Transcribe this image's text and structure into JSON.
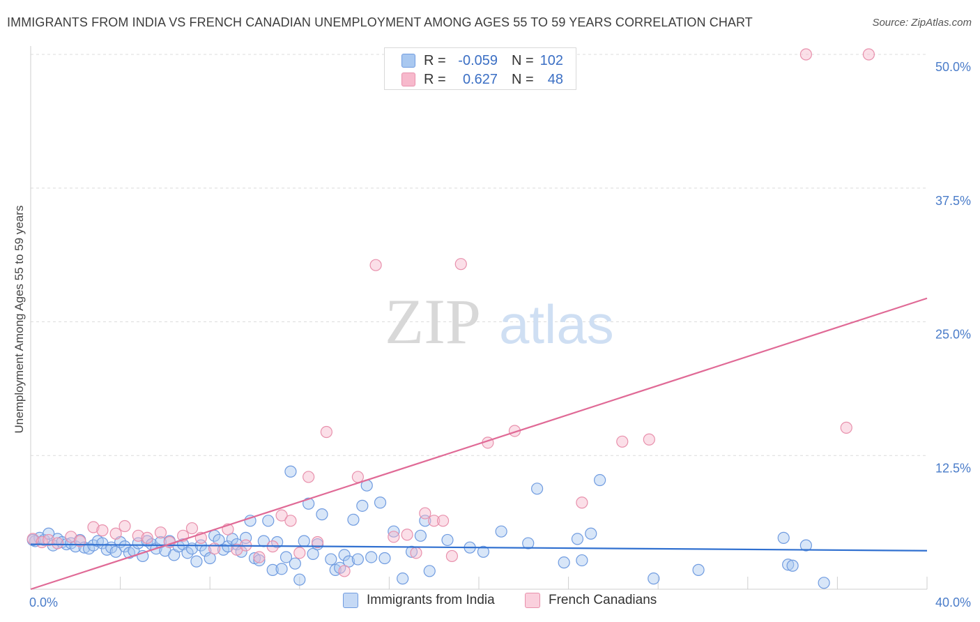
{
  "title": "IMMIGRANTS FROM INDIA VS FRENCH CANADIAN UNEMPLOYMENT AMONG AGES 55 TO 59 YEARS CORRELATION CHART",
  "source": "Source: ZipAtlas.com",
  "watermark": {
    "zip": "ZIP",
    "atlas": "atlas"
  },
  "legend": {
    "rows": [
      {
        "r_label": "R =",
        "r_value": "-0.059",
        "n_label": "N =",
        "n_value": "102",
        "color": "#a9c8f0",
        "border": "#6f9be0"
      },
      {
        "r_label": "R =",
        "r_value": "0.627",
        "n_label": "N =",
        "n_value": "48",
        "color": "#f7b9cc",
        "border": "#e890ac"
      }
    ]
  },
  "bottom_legend": [
    "Immigrants from India",
    "French Canadians"
  ],
  "chart_data": {
    "type": "scatter",
    "title": "IMMIGRANTS FROM INDIA VS FRENCH CANADIAN UNEMPLOYMENT AMONG AGES 55 TO 59 YEARS CORRELATION CHART",
    "xlabel": "",
    "ylabel": "Unemployment Among Ages 55 to 59 years",
    "xlim": [
      0,
      40
    ],
    "ylim": [
      0,
      50
    ],
    "x_tick_labels": [
      "0.0%",
      "40.0%"
    ],
    "y_ticks": [
      12.5,
      25.0,
      37.5,
      50.0
    ],
    "y_tick_labels": [
      "12.5%",
      "25.0%",
      "37.5%",
      "50.0%"
    ],
    "grid": true,
    "series": [
      {
        "name": "Immigrants from India",
        "color": "#6f9be0",
        "fill": "#a9c8f0",
        "trend": {
          "x": [
            0,
            40
          ],
          "y": [
            4.2,
            3.6
          ],
          "color": "#3070d0"
        },
        "points": [
          [
            0.2,
            4.5
          ],
          [
            0.4,
            4.8
          ],
          [
            0.6,
            4.6
          ],
          [
            0.8,
            5.2
          ],
          [
            1.0,
            4.1
          ],
          [
            1.2,
            4.7
          ],
          [
            1.4,
            4.4
          ],
          [
            1.6,
            4.2
          ],
          [
            1.8,
            4.3
          ],
          [
            2.0,
            4.0
          ],
          [
            2.2,
            4.6
          ],
          [
            2.4,
            3.9
          ],
          [
            2.6,
            3.8
          ],
          [
            2.8,
            4.1
          ],
          [
            3.0,
            4.5
          ],
          [
            3.2,
            4.3
          ],
          [
            3.4,
            3.7
          ],
          [
            3.6,
            3.9
          ],
          [
            3.8,
            3.5
          ],
          [
            4.0,
            4.4
          ],
          [
            4.2,
            4.0
          ],
          [
            4.4,
            3.4
          ],
          [
            4.6,
            3.6
          ],
          [
            4.8,
            4.3
          ],
          [
            5.0,
            3.1
          ],
          [
            5.2,
            4.5
          ],
          [
            5.4,
            4.2
          ],
          [
            5.6,
            3.8
          ],
          [
            5.8,
            4.4
          ],
          [
            6.0,
            3.6
          ],
          [
            6.2,
            4.5
          ],
          [
            6.4,
            3.2
          ],
          [
            6.6,
            4.0
          ],
          [
            6.8,
            4.2
          ],
          [
            7.0,
            3.4
          ],
          [
            7.2,
            3.8
          ],
          [
            7.4,
            2.6
          ],
          [
            7.6,
            4.1
          ],
          [
            7.8,
            3.6
          ],
          [
            8.0,
            2.9
          ],
          [
            8.2,
            5.0
          ],
          [
            8.4,
            4.6
          ],
          [
            8.6,
            3.7
          ],
          [
            8.8,
            4.0
          ],
          [
            9.0,
            4.7
          ],
          [
            9.2,
            4.2
          ],
          [
            9.4,
            3.5
          ],
          [
            9.6,
            4.8
          ],
          [
            9.8,
            6.4
          ],
          [
            10.0,
            2.9
          ],
          [
            10.2,
            2.7
          ],
          [
            10.4,
            4.5
          ],
          [
            10.6,
            6.4
          ],
          [
            10.8,
            1.8
          ],
          [
            11.0,
            4.4
          ],
          [
            11.2,
            1.9
          ],
          [
            11.4,
            3.0
          ],
          [
            11.6,
            11.0
          ],
          [
            11.8,
            2.4
          ],
          [
            12.0,
            0.9
          ],
          [
            12.2,
            4.5
          ],
          [
            12.4,
            8.0
          ],
          [
            12.6,
            3.3
          ],
          [
            12.8,
            4.2
          ],
          [
            13.0,
            7.0
          ],
          [
            13.4,
            2.8
          ],
          [
            13.6,
            1.8
          ],
          [
            13.8,
            2.0
          ],
          [
            14.0,
            3.2
          ],
          [
            14.2,
            2.6
          ],
          [
            14.4,
            6.5
          ],
          [
            14.6,
            2.8
          ],
          [
            14.8,
            7.8
          ],
          [
            15.0,
            9.7
          ],
          [
            15.2,
            3.0
          ],
          [
            15.6,
            8.1
          ],
          [
            15.8,
            2.9
          ],
          [
            16.2,
            5.4
          ],
          [
            16.6,
            1.0
          ],
          [
            17.0,
            3.5
          ],
          [
            17.4,
            5.0
          ],
          [
            17.6,
            6.4
          ],
          [
            17.8,
            1.7
          ],
          [
            18.6,
            4.6
          ],
          [
            19.6,
            3.9
          ],
          [
            20.2,
            3.5
          ],
          [
            21.0,
            5.4
          ],
          [
            22.2,
            4.3
          ],
          [
            22.6,
            9.4
          ],
          [
            23.8,
            2.5
          ],
          [
            24.4,
            4.7
          ],
          [
            24.6,
            2.7
          ],
          [
            25.0,
            5.2
          ],
          [
            25.4,
            10.2
          ],
          [
            27.8,
            1.0
          ],
          [
            29.8,
            1.8
          ],
          [
            33.6,
            4.8
          ],
          [
            33.8,
            2.3
          ],
          [
            34.0,
            2.2
          ],
          [
            34.6,
            4.1
          ],
          [
            35.4,
            0.6
          ],
          [
            0.1,
            4.6
          ]
        ]
      },
      {
        "name": "French Canadians",
        "color": "#e890ac",
        "fill": "#f7b9cc",
        "trend": {
          "x": [
            0,
            40
          ],
          "y": [
            0,
            27.2
          ],
          "color": "#e06a96"
        },
        "points": [
          [
            0.1,
            4.7
          ],
          [
            0.5,
            4.4
          ],
          [
            0.8,
            4.6
          ],
          [
            1.2,
            4.3
          ],
          [
            1.8,
            4.9
          ],
          [
            2.2,
            4.5
          ],
          [
            2.8,
            5.8
          ],
          [
            3.2,
            5.5
          ],
          [
            3.8,
            5.2
          ],
          [
            4.2,
            5.9
          ],
          [
            4.8,
            5.0
          ],
          [
            5.2,
            4.8
          ],
          [
            5.8,
            5.3
          ],
          [
            6.2,
            4.4
          ],
          [
            6.8,
            5.0
          ],
          [
            7.2,
            5.7
          ],
          [
            7.6,
            4.8
          ],
          [
            8.2,
            3.8
          ],
          [
            8.8,
            5.6
          ],
          [
            9.2,
            3.7
          ],
          [
            9.6,
            4.1
          ],
          [
            10.2,
            3.0
          ],
          [
            10.8,
            4.0
          ],
          [
            11.2,
            6.9
          ],
          [
            11.6,
            6.4
          ],
          [
            12.0,
            3.4
          ],
          [
            12.4,
            10.5
          ],
          [
            12.8,
            4.4
          ],
          [
            13.2,
            14.7
          ],
          [
            14.0,
            1.7
          ],
          [
            14.6,
            10.5
          ],
          [
            15.4,
            30.3
          ],
          [
            16.2,
            4.9
          ],
          [
            16.8,
            5.1
          ],
          [
            17.2,
            3.4
          ],
          [
            17.6,
            7.1
          ],
          [
            18.0,
            6.4
          ],
          [
            18.4,
            6.4
          ],
          [
            18.8,
            3.1
          ],
          [
            19.2,
            30.4
          ],
          [
            20.4,
            13.7
          ],
          [
            21.6,
            14.8
          ],
          [
            24.6,
            8.1
          ],
          [
            26.4,
            13.8
          ],
          [
            27.6,
            14.0
          ],
          [
            34.6,
            50.0
          ],
          [
            36.4,
            15.1
          ],
          [
            37.4,
            50.0
          ]
        ]
      }
    ]
  }
}
